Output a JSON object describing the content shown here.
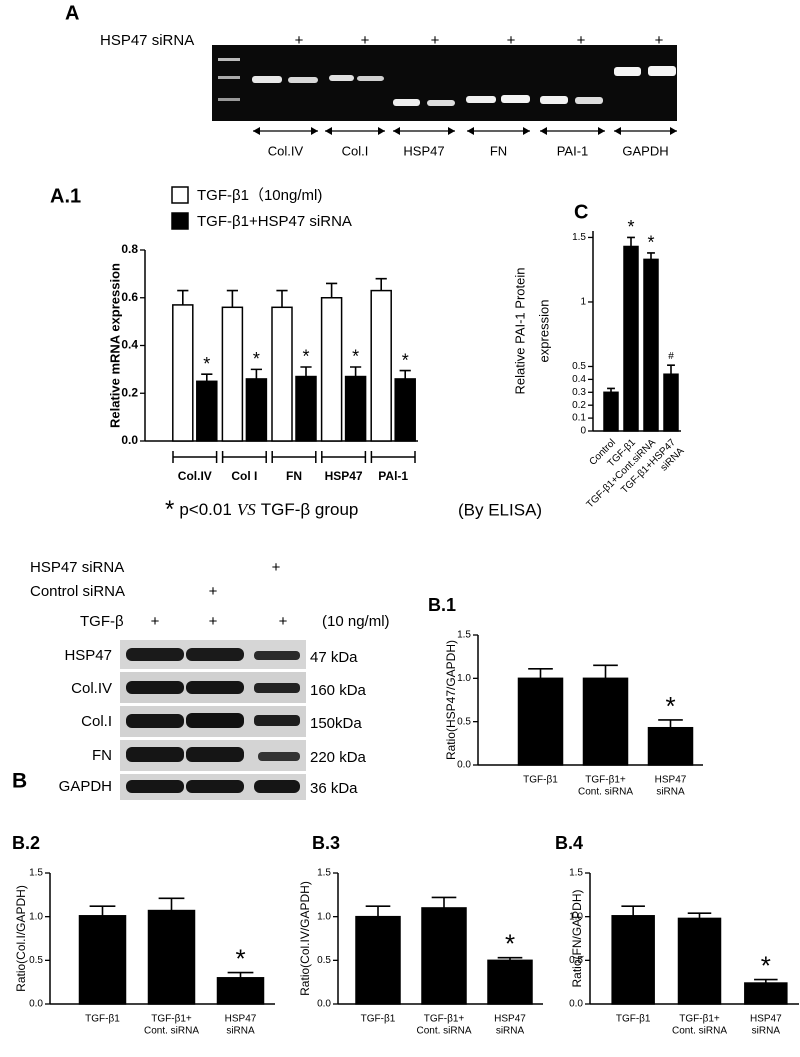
{
  "panel_a": {
    "label": "A",
    "row_label": "HSP47 siRNA",
    "plus_marks": [
      "+",
      "+",
      "+",
      "+",
      "+",
      "+"
    ],
    "lanes": [
      "Col.IV",
      "Col.I",
      "HSP47",
      "FN",
      "PAI-1",
      "GAPDH"
    ]
  },
  "panel_b": {
    "label": "B",
    "rows": [
      {
        "label": "HSP47 siRNA",
        "marks": [
          "+"
        ]
      },
      {
        "label": "Control siRNA",
        "marks": [
          "+"
        ]
      },
      {
        "label": "TGF-β",
        "marks": [
          "+",
          "+",
          "+"
        ],
        "note": "(10 ng/ml)"
      }
    ],
    "proteins": [
      {
        "name": "HSP47",
        "size": "47 kDa"
      },
      {
        "name": "Col.IV",
        "size": "160 kDa"
      },
      {
        "name": "Col.I",
        "size": "150kDa"
      },
      {
        "name": "FN",
        "size": "220 kDa"
      },
      {
        "name": "GAPDH",
        "size": "36 kDa"
      }
    ]
  },
  "chart_data": [
    {
      "type": "bar",
      "panel_label": "A.1",
      "y_label": "Relative mRNA expression",
      "categories": [
        "Col.IV",
        "Col I",
        "FN",
        "HSP47",
        "PAl-1"
      ],
      "series": [
        {
          "name": "TGF-β1（10ng/ml)",
          "color": "#ffffff",
          "values": [
            0.57,
            0.56,
            0.56,
            0.6,
            0.63
          ],
          "errors": [
            0.06,
            0.07,
            0.07,
            0.06,
            0.05
          ]
        },
        {
          "name": "TGF-β1+HSP47 siRNA",
          "color": "#000000",
          "values": [
            0.25,
            0.26,
            0.27,
            0.27,
            0.26
          ],
          "errors": [
            0.03,
            0.04,
            0.04,
            0.04,
            0.035
          ],
          "significance": [
            "*",
            "*",
            "*",
            "*",
            "*"
          ]
        }
      ],
      "ylim": [
        0,
        0.8
      ],
      "yticks": [
        {
          "value": 0,
          "label": "0.0"
        },
        0.2,
        0.4,
        0.6,
        0.8
      ],
      "footnote": {
        "symbol": "*",
        "text": "p<0.01",
        "emphasis": "VS",
        "rest": "TGF-β group"
      }
    },
    {
      "type": "bar",
      "panel_label": "C",
      "y_label": [
        "Relative PAI-1 Protein",
        "expression"
      ],
      "categories": [
        [
          "Control"
        ],
        [
          "TGF-β1"
        ],
        [
          "TGF-β1+Cont.siRNA"
        ],
        [
          "TGF-β1+HSP47",
          "siRNA"
        ]
      ],
      "color": "#000000",
      "values": [
        0.3,
        1.43,
        1.33,
        0.44
      ],
      "errors": [
        0.03,
        0.07,
        0.05,
        0.07
      ],
      "significance": [
        null,
        "*",
        "*",
        "#"
      ],
      "ylim": [
        0,
        1.55
      ],
      "yticks": [
        0,
        0.1,
        0.2,
        0.3,
        0.4,
        0.5,
        1,
        1.5
      ],
      "note": "(By ELISA)"
    },
    {
      "type": "bar",
      "panel_label": "B.1",
      "y_label": "Ratio(HSP47/GAPDH)",
      "categories": [
        [
          "TGF-β1"
        ],
        [
          "TGF-β1+",
          "Cont. siRNA"
        ],
        [
          "HSP47",
          "siRNA"
        ]
      ],
      "color": "#000000",
      "values": [
        1.0,
        1.0,
        0.43
      ],
      "errors": [
        0.11,
        0.15,
        0.09
      ],
      "significance": [
        null,
        null,
        "*"
      ],
      "ylim": [
        0,
        1.5
      ],
      "yticks": [
        {
          "value": 0,
          "label": "0.0"
        },
        0.5,
        {
          "value": 1,
          "label": "1.0"
        },
        1.5
      ]
    },
    {
      "type": "bar",
      "panel_label": "B.2",
      "y_label": "Ratio(Col.I/GAPDH)",
      "categories": [
        [
          "TGF-β1"
        ],
        [
          "TGF-β1+",
          "Cont. siRNA"
        ],
        [
          "HSP47",
          "siRNA"
        ]
      ],
      "color": "#000000",
      "values": [
        1.01,
        1.07,
        0.3
      ],
      "errors": [
        0.11,
        0.14,
        0.06
      ],
      "significance": [
        null,
        null,
        "*"
      ],
      "ylim": [
        0,
        1.5
      ],
      "yticks": [
        {
          "value": 0,
          "label": "0.0"
        },
        0.5,
        {
          "value": 1,
          "label": "1.0"
        },
        1.5
      ]
    },
    {
      "type": "bar",
      "panel_label": "B.3",
      "y_label": "Ratio(Col.IV/GAPDH)",
      "categories": [
        [
          "TGF-β1"
        ],
        [
          "TGF-β1+",
          "Cont. siRNA"
        ],
        [
          "HSP47",
          "siRNA"
        ]
      ],
      "color": "#000000",
      "values": [
        1.0,
        1.1,
        0.5
      ],
      "errors": [
        0.12,
        0.12,
        0.03
      ],
      "significance": [
        null,
        null,
        "*"
      ],
      "ylim": [
        0,
        1.5
      ],
      "yticks": [
        {
          "value": 0,
          "label": "0.0"
        },
        0.5,
        {
          "value": 1,
          "label": "1.0"
        },
        1.5
      ]
    },
    {
      "type": "bar",
      "panel_label": "B.4",
      "y_label": "Ratio(FN/GAPDH)",
      "categories": [
        [
          "TGF-β1"
        ],
        [
          "TGF-β1+",
          "Cont. siRNA"
        ],
        [
          "HSP47",
          "siRNA"
        ]
      ],
      "color": "#000000",
      "values": [
        1.01,
        0.98,
        0.24
      ],
      "errors": [
        0.11,
        0.06,
        0.04
      ],
      "significance": [
        null,
        null,
        "*"
      ],
      "ylim": [
        0,
        1.5
      ],
      "yticks": [
        {
          "value": 0,
          "label": "0.0"
        },
        0.5,
        {
          "value": 1,
          "label": "1.0"
        },
        1.5
      ]
    }
  ]
}
